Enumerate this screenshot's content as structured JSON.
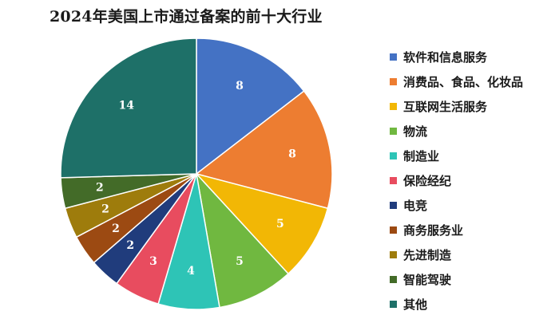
{
  "chart_data": {
    "type": "pie",
    "title": "2024年美国上市通过备案的前十大行业",
    "categories": [
      "软件和信息服务",
      "消费品、食品、化妆品",
      "互联网生活服务",
      "物流",
      "制造业",
      "保险经纪",
      "电竞",
      "商务服务业",
      "先进制造",
      "智能驾驶",
      "其他"
    ],
    "values": [
      8,
      8,
      5,
      5,
      4,
      3,
      2,
      2,
      2,
      2,
      14
    ],
    "colors": [
      "#4472C4",
      "#ED7D31",
      "#F2B705",
      "#70B840",
      "#2EC4B6",
      "#E84C5F",
      "#203C7C",
      "#9C4A12",
      "#9E7C0C",
      "#436B28",
      "#1E7068"
    ],
    "legend_position": "right",
    "start_angle": "12 o'clock",
    "direction": "clockwise"
  }
}
